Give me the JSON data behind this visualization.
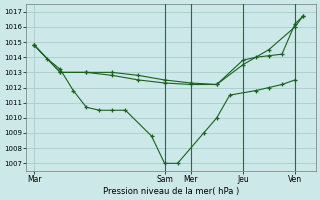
{
  "title": "",
  "xlabel": "Pression niveau de la mer( hPa )",
  "ylim": [
    1006.5,
    1017.5
  ],
  "yticks": [
    1007,
    1008,
    1009,
    1010,
    1011,
    1012,
    1013,
    1014,
    1015,
    1016,
    1017
  ],
  "background_color": "#cce8e8",
  "grid_color": "#aacccc",
  "line_color": "#1a6020",
  "vline_color": "#336633",
  "xtick_labels": [
    "Mar",
    "Sam",
    "Mer",
    "Jeu",
    "Ven"
  ],
  "xtick_positions": [
    0,
    5,
    6,
    8,
    10
  ],
  "xlim": [
    -0.3,
    10.8
  ],
  "vline_positions": [
    5,
    6,
    8,
    10
  ],
  "series": [
    {
      "x": [
        0,
        0.5,
        1,
        1.5,
        2,
        2.5,
        3,
        3.5,
        4.5,
        5,
        5.5,
        6.5,
        7,
        7.5,
        8.5,
        9,
        9.5,
        10
      ],
      "y": [
        1014.8,
        1013.9,
        1013.2,
        1011.8,
        1010.7,
        1010.5,
        1010.5,
        1010.5,
        1008.8,
        1007.0,
        1007.0,
        1009.0,
        1010.0,
        1011.5,
        1011.8,
        1012.0,
        1012.2,
        1012.5
      ]
    },
    {
      "x": [
        0,
        1,
        2,
        3,
        4,
        5,
        6,
        7,
        8,
        9,
        10,
        10.3
      ],
      "y": [
        1014.8,
        1013.0,
        1013.0,
        1013.0,
        1012.8,
        1012.5,
        1012.3,
        1012.2,
        1013.5,
        1014.5,
        1016.0,
        1016.7
      ]
    },
    {
      "x": [
        0,
        1,
        2,
        3,
        4,
        5,
        6,
        7,
        8,
        8.5,
        9,
        9.5,
        10,
        10.3
      ],
      "y": [
        1014.8,
        1013.0,
        1013.0,
        1012.8,
        1012.5,
        1012.3,
        1012.2,
        1012.2,
        1013.8,
        1014.0,
        1014.1,
        1014.2,
        1016.2,
        1016.7
      ]
    }
  ]
}
